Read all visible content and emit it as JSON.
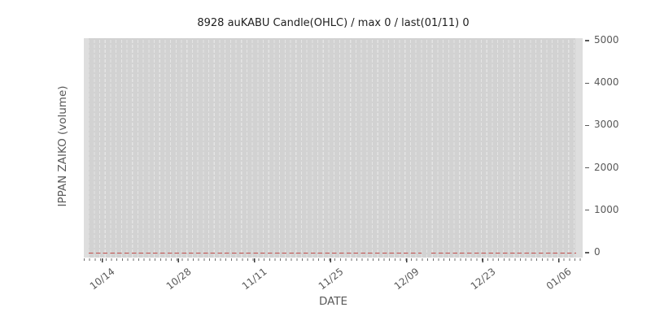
{
  "figure": {
    "title": "8928 auKABU Candle(OHLC) / max 0 / last(01/11) 0",
    "xlabel": "DATE",
    "ylabel": "IPPAN ZAIKO (volume)"
  },
  "chart_data": {
    "type": "line",
    "title": "8928 auKABU Candle(OHLC) / max 0 / last(01/11) 0",
    "xlabel": "DATE",
    "ylabel": "IPPAN ZAIKO (volume)",
    "x_tick_labels": [
      "10/14",
      "10/28",
      "11/11",
      "11/25",
      "12/09",
      "12/23",
      "01/06"
    ],
    "x_major_tick_interval_days": 14,
    "x_minor_tick_interval_days": 1,
    "y_ticks": [
      "0",
      "1000",
      "2000",
      "3000",
      "4000",
      "5000"
    ],
    "y_tick_values": [
      0,
      1000,
      2000,
      3000,
      4000,
      5000
    ],
    "ylim": [
      -100,
      5170
    ],
    "grid": "vertical dashed gridline per day, on gray plot background",
    "legend_position": "none",
    "series": [
      {
        "name": "IPPAN ZAIKO volume",
        "line_style": "dashed",
        "color": "#c24e4c",
        "value_constant": 0,
        "x_span": [
          "10/12",
          "01/11"
        ],
        "gap_in_line_around": "12/12-12/14",
        "max": 0,
        "last_point": {
          "date": "01/11",
          "value": 0
        }
      }
    ],
    "colors": {
      "page_background": "#ffffff",
      "plot_background": "#d2d2d2",
      "grid_dash": "#e4e4e4",
      "zero_line": "#c24e4c",
      "tick_label_text": "#595959",
      "title_text": "#1f1f1f"
    }
  }
}
